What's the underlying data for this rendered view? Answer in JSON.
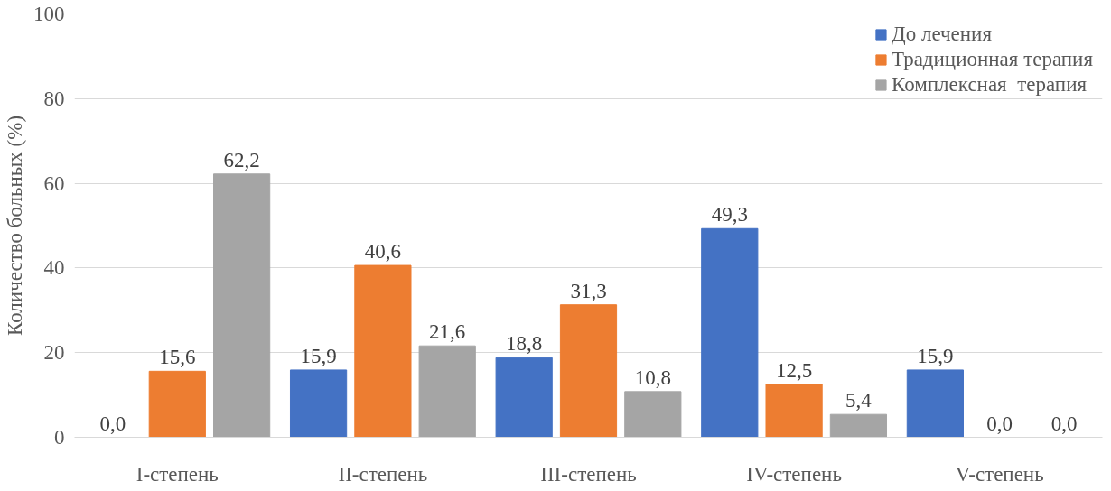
{
  "chart_data": {
    "type": "bar",
    "ylabel": "Количество больных (%)",
    "categories": [
      "I-степень",
      "II-степень",
      "III-степень",
      "IV-степень",
      "V-степень"
    ],
    "series": [
      {
        "name": "До лечения",
        "color": "#4472c4",
        "values": [
          0.0,
          15.9,
          18.8,
          49.3,
          15.9
        ],
        "value_labels": [
          "0,0",
          "15,9",
          "18,8",
          "49,3",
          "15,9"
        ]
      },
      {
        "name": "Традиционная терапия",
        "color": "#ed7d31",
        "values": [
          15.6,
          40.6,
          31.3,
          12.5,
          0.0
        ],
        "value_labels": [
          "15,6",
          "40,6",
          "31,3",
          "12,5",
          "0,0"
        ]
      },
      {
        "name": "Комплексная  терапия",
        "color": "#a5a5a5",
        "values": [
          62.2,
          21.6,
          10.8,
          5.4,
          0.0
        ],
        "value_labels": [
          "62,2",
          "21,6",
          "10,8",
          "5,4",
          "0,0"
        ]
      }
    ],
    "ylim": [
      0,
      100
    ],
    "yticks": [
      0,
      20,
      40,
      60,
      80,
      100
    ],
    "grid": "y",
    "legend": "top right"
  }
}
